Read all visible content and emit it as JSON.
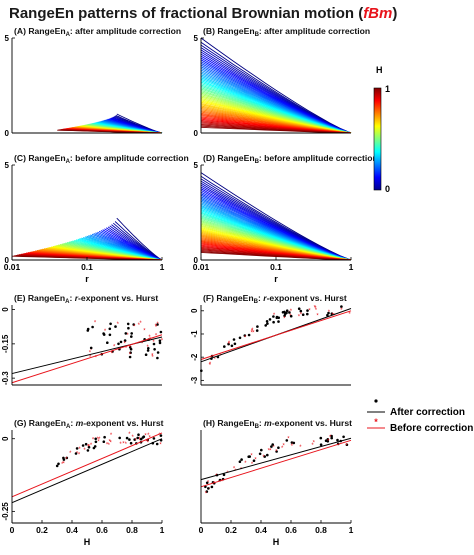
{
  "figure": {
    "title_main": "RangeEn patterns of fractional Brownian motion (",
    "title_emph": "fBm",
    "title_close": ")",
    "colors": {
      "after": "#000000",
      "before": "#e8141c",
      "frame": "#000000"
    }
  },
  "chart_data": [
    {
      "id": "A",
      "type": "line",
      "title_prefix": "(A) RangeEn",
      "title_sub": "A",
      "title_suffix": ": after amplitude correction",
      "x_scale": "log",
      "xlim": [
        0.01,
        1
      ],
      "ylim": [
        0,
        5
      ],
      "ytick_labels": [
        "0",
        "5"
      ],
      "yticks": [
        0,
        5
      ],
      "xtick_labels": [],
      "colorbar_variable": "H",
      "series_rule": "one curve per H value; curves fall to 0 at r=1",
      "h_range": [
        0,
        1
      ],
      "start_x_low_h": 0.25,
      "start_x_high_h": 0.04,
      "start_y_low_h": 1.0,
      "start_y_high_h": 0.15
    },
    {
      "id": "B",
      "type": "line",
      "title_prefix": "(B) RangeEn",
      "title_sub": "B",
      "title_suffix": ": after amplitude correction",
      "x_scale": "log",
      "xlim": [
        0.01,
        1
      ],
      "ylim": [
        0,
        5
      ],
      "ytick_labels": [
        "0",
        "5"
      ],
      "yticks": [
        0,
        5
      ],
      "xtick_labels": [],
      "colorbar_variable": "H",
      "h_range": [
        0,
        1
      ],
      "start_y_low_h": 5.0,
      "start_y_high_h": 0.3
    },
    {
      "id": "C",
      "type": "line",
      "title_prefix": "(C) RangeEn",
      "title_sub": "A",
      "title_suffix": ": before amplitude correction",
      "x_scale": "log",
      "xlim": [
        0.01,
        1
      ],
      "ylim": [
        0,
        5
      ],
      "ytick_labels": [
        "0",
        "5"
      ],
      "yticks": [
        0,
        5
      ],
      "xtick_labels": [
        "0.01",
        "0.1",
        "1"
      ],
      "xticks": [
        0.01,
        0.1,
        1
      ],
      "xlabel": "r",
      "colorbar_variable": "H",
      "h_range": [
        0,
        1
      ],
      "start_x_low_h": 0.25,
      "start_x_high_h": 0.01,
      "start_y_low_h": 2.2,
      "start_y_high_h": 0.2
    },
    {
      "id": "D",
      "type": "line",
      "title_prefix": "(D) RangeEn",
      "title_sub": "B",
      "title_suffix": ": before amplitude correction",
      "x_scale": "log",
      "xlim": [
        0.01,
        1
      ],
      "ylim": [
        0,
        5
      ],
      "ytick_labels": [
        "0",
        "5"
      ],
      "yticks": [
        0,
        5
      ],
      "xtick_labels": [
        "0.01",
        "0.1",
        "1"
      ],
      "xticks": [
        0.01,
        0.1,
        1
      ],
      "xlabel": "r",
      "colorbar_variable": "H",
      "h_range": [
        0,
        1
      ],
      "start_y_low_h": 4.6,
      "start_y_high_h": 0.4
    },
    {
      "id": "E",
      "type": "scatter",
      "title_prefix": "(E) RangeEn",
      "title_sub": "A",
      "title_suffix": ": ",
      "title_italic": "r",
      "title_rest": "-exponent vs. Hurst",
      "xlim": [
        0,
        1
      ],
      "ylim": [
        -0.33,
        0.02
      ],
      "yticks": [
        0,
        -0.15,
        -0.3
      ],
      "ytick_labels": [
        "0",
        "-0.15",
        "-0.3"
      ],
      "xtick_labels": [],
      "fit_after": [
        [
          0,
          -0.28
        ],
        [
          1,
          -0.12
        ]
      ],
      "fit_before": [
        [
          0,
          -0.32
        ],
        [
          1,
          -0.11
        ]
      ],
      "points_x_range": [
        0.5,
        1.0
      ],
      "points_y_center": -0.13,
      "points_y_spread": 0.17
    },
    {
      "id": "F",
      "type": "scatter",
      "title_prefix": "(F) RangeEn",
      "title_sub": "B",
      "title_suffix": ": ",
      "title_italic": "r",
      "title_rest": "-exponent vs. Hurst",
      "xlim": [
        0,
        1
      ],
      "ylim": [
        -3.2,
        0.25
      ],
      "yticks": [
        0,
        -1,
        -2,
        -3
      ],
      "ytick_labels": [
        "0",
        "-1",
        "-2",
        "-3"
      ],
      "xtick_labels": [],
      "fit_after": [
        [
          0,
          -2.2
        ],
        [
          1,
          0.1
        ]
      ],
      "fit_before": [
        [
          0,
          -2.1
        ],
        [
          1,
          0.0
        ]
      ],
      "curve_low": -2.4,
      "curve_high": 0.0
    },
    {
      "id": "G",
      "type": "scatter",
      "title_prefix": "(G) RangeEn",
      "title_sub": "A",
      "title_suffix": ": ",
      "title_italic": "m",
      "title_rest": "-exponent vs. Hurst",
      "xlim": [
        0,
        1
      ],
      "ylim": [
        -0.29,
        0.03
      ],
      "yticks": [
        0,
        -0.25
      ],
      "ytick_labels": [
        "0",
        "-0.25"
      ],
      "xtick_labels": [
        "0",
        "0.2",
        "0.4",
        "0.6",
        "0.8",
        "1"
      ],
      "xticks": [
        0,
        0.2,
        0.4,
        0.6,
        0.8,
        1
      ],
      "xlabel": "H",
      "fit_after": [
        [
          0,
          -0.22
        ],
        [
          1,
          0.0
        ]
      ],
      "fit_before": [
        [
          0,
          -0.2
        ],
        [
          1,
          0.02
        ]
      ],
      "points_x_range": [
        0.3,
        1.0
      ],
      "curve_low": -0.21,
      "curve_high": 0.0
    },
    {
      "id": "H",
      "type": "scatter",
      "title_prefix": "(H) RangeEn",
      "title_sub": "B",
      "title_suffix": ": ",
      "title_italic": "m",
      "title_rest": "-exponent vs. Hurst",
      "xlim": [
        0,
        1
      ],
      "ylim": [
        -0.8,
        0.1
      ],
      "yticks": [],
      "ytick_labels": [],
      "xtick_labels": [
        "0",
        "0.2",
        "0.4",
        "0.6",
        "0.8",
        "1"
      ],
      "xticks": [
        0,
        0.2,
        0.4,
        0.6,
        0.8,
        1
      ],
      "xlabel": "H",
      "fit_after": [
        [
          0,
          -0.38
        ],
        [
          1,
          0.02
        ]
      ],
      "fit_before": [
        [
          0,
          -0.45
        ],
        [
          1,
          0.0
        ]
      ],
      "curve_low": -0.5,
      "curve_high": 0.0
    }
  ],
  "colorbar": {
    "label": "H",
    "tick_labels": [
      "1",
      "0"
    ],
    "range": [
      0,
      1
    ]
  },
  "legend": {
    "items": [
      {
        "marker": "dot",
        "line": "black",
        "label": "After correction"
      },
      {
        "marker": "star",
        "line": "red",
        "label": "Before correction"
      }
    ]
  }
}
